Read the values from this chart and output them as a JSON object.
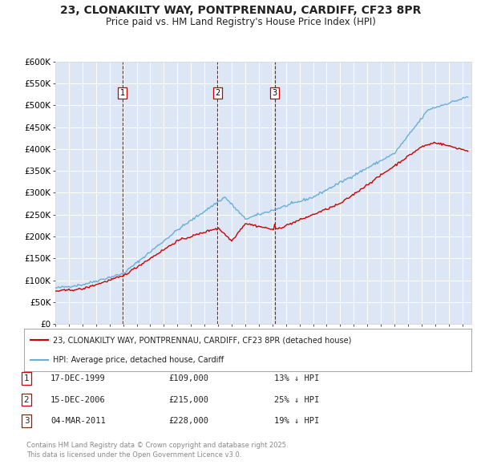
{
  "title": "23, CLONAKILTY WAY, PONTPRENNAU, CARDIFF, CF23 8PR",
  "subtitle": "Price paid vs. HM Land Registry's House Price Index (HPI)",
  "title_fontsize": 10,
  "subtitle_fontsize": 8.5,
  "background_color": "#ffffff",
  "plot_bg_color": "#dce6f5",
  "grid_color": "#ffffff",
  "hpi_color": "#6aaed6",
  "price_color": "#cc0000",
  "ylim": [
    0,
    600000
  ],
  "yticks": [
    0,
    50000,
    100000,
    150000,
    200000,
    250000,
    300000,
    350000,
    400000,
    450000,
    500000,
    550000,
    600000
  ],
  "ytick_labels": [
    "£0",
    "£50K",
    "£100K",
    "£150K",
    "£200K",
    "£250K",
    "£300K",
    "£350K",
    "£400K",
    "£450K",
    "£500K",
    "£550K",
    "£600K"
  ],
  "legend_label_red": "23, CLONAKILTY WAY, PONTPRENNAU, CARDIFF, CF23 8PR (detached house)",
  "legend_label_blue": "HPI: Average price, detached house, Cardiff",
  "footer_line1": "Contains HM Land Registry data © Crown copyright and database right 2025.",
  "footer_line2": "This data is licensed under the Open Government Licence v3.0.",
  "table_rows": [
    [
      "1",
      "17-DEC-1999",
      "£109,000",
      "13% ↓ HPI"
    ],
    [
      "2",
      "15-DEC-2006",
      "£215,000",
      "25% ↓ HPI"
    ],
    [
      "3",
      "04-MAR-2011",
      "£228,000",
      "19% ↓ HPI"
    ]
  ]
}
